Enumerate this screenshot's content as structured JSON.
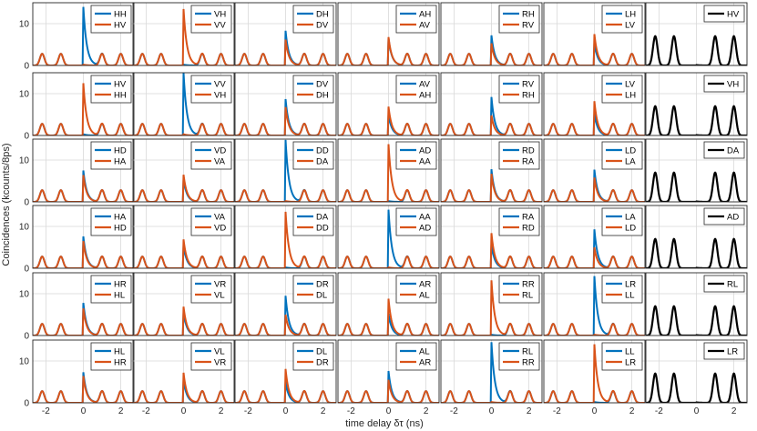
{
  "figure": {
    "xlabel": "time delay δτ (ns)",
    "ylabel": "Coincidences (kcounts/8ps)"
  },
  "colors": {
    "blue": "#0072BD",
    "orange": "#D95319",
    "black": "#000000",
    "grid": "#d9d9d9"
  },
  "chart_data": {
    "type": "line",
    "layout": "6 rows x 7 columns of small multiples",
    "xlim": [
      -2.7,
      2.7
    ],
    "ylim": [
      0,
      15
    ],
    "x_ticks": [
      -2,
      0,
      2
    ],
    "x_tick_labels": [
      "-2",
      "0",
      "2"
    ],
    "y_ticks": [
      0,
      10
    ],
    "y_tick_labels": [
      "0",
      "10"
    ],
    "grid": true,
    "legend_placement": "top-right",
    "side_peaks": {
      "centers": [
        -2.2,
        -1.2,
        1.0,
        2.0
      ],
      "height": 2.8,
      "height_last_column": 7.0
    },
    "rows": [
      {
        "panels": [
          {
            "legend": [
              "HH",
              "HV"
            ],
            "series": [
              {
                "name": "HH",
                "peak": 14.0
              },
              {
                "name": "HV",
                "peak": 0.2
              }
            ]
          },
          {
            "legend": [
              "VH",
              "VV"
            ],
            "series": [
              {
                "name": "VH",
                "peak": 0.2
              },
              {
                "name": "VV",
                "peak": 13.5
              }
            ]
          },
          {
            "legend": [
              "DH",
              "DV"
            ],
            "series": [
              {
                "name": "DH",
                "peak": 8.3
              },
              {
                "name": "DV",
                "peak": 6.2
              }
            ]
          },
          {
            "legend": [
              "AH",
              "AV"
            ],
            "series": [
              {
                "name": "AH",
                "peak": 6.5
              },
              {
                "name": "AV",
                "peak": 6.8
              }
            ]
          },
          {
            "legend": [
              "RH",
              "RV"
            ],
            "series": [
              {
                "name": "RH",
                "peak": 7.2
              },
              {
                "name": "RV",
                "peak": 5.3
              }
            ]
          },
          {
            "legend": [
              "LH",
              "LV"
            ],
            "series": [
              {
                "name": "LH",
                "peak": 5.4
              },
              {
                "name": "LV",
                "peak": 7.5
              }
            ]
          },
          {
            "legend": [
              "HV"
            ],
            "series": [
              {
                "name": "HV",
                "peak": 0.1
              }
            ]
          }
        ]
      },
      {
        "panels": [
          {
            "legend": [
              "HV",
              "HH"
            ],
            "series": [
              {
                "name": "HV",
                "peak": 0.3
              },
              {
                "name": "HH",
                "peak": 12.5
              }
            ]
          },
          {
            "legend": [
              "VV",
              "VH"
            ],
            "series": [
              {
                "name": "VV",
                "peak": 15.0
              },
              {
                "name": "VH",
                "peak": 0.3
              }
            ]
          },
          {
            "legend": [
              "DV",
              "DH"
            ],
            "series": [
              {
                "name": "DV",
                "peak": 8.7
              },
              {
                "name": "DH",
                "peak": 6.8
              }
            ]
          },
          {
            "legend": [
              "AV",
              "AH"
            ],
            "series": [
              {
                "name": "AV",
                "peak": 5.0
              },
              {
                "name": "AH",
                "peak": 6.9
              }
            ]
          },
          {
            "legend": [
              "RV",
              "RH"
            ],
            "series": [
              {
                "name": "RV",
                "peak": 9.2
              },
              {
                "name": "RH",
                "peak": 4.8
              }
            ]
          },
          {
            "legend": [
              "LV",
              "LH"
            ],
            "series": [
              {
                "name": "LV",
                "peak": 5.3
              },
              {
                "name": "LH",
                "peak": 8.2
              }
            ]
          },
          {
            "legend": [
              "VH"
            ],
            "series": [
              {
                "name": "VH",
                "peak": 0.1
              }
            ]
          }
        ]
      },
      {
        "panels": [
          {
            "legend": [
              "HD",
              "HA"
            ],
            "series": [
              {
                "name": "HD",
                "peak": 7.5
              },
              {
                "name": "HA",
                "peak": 6.4
              }
            ]
          },
          {
            "legend": [
              "VD",
              "VA"
            ],
            "series": [
              {
                "name": "VD",
                "peak": 5.4
              },
              {
                "name": "VA",
                "peak": 6.5
              }
            ]
          },
          {
            "legend": [
              "DD",
              "DA"
            ],
            "series": [
              {
                "name": "DD",
                "peak": 14.8
              },
              {
                "name": "DA",
                "peak": 0.2
              }
            ]
          },
          {
            "legend": [
              "AD",
              "AA"
            ],
            "series": [
              {
                "name": "AD",
                "peak": 0.2
              },
              {
                "name": "AA",
                "peak": 13.8
              }
            ]
          },
          {
            "legend": [
              "RD",
              "RA"
            ],
            "series": [
              {
                "name": "RD",
                "peak": 7.8
              },
              {
                "name": "RA",
                "peak": 6.7
              }
            ]
          },
          {
            "legend": [
              "LD",
              "LA"
            ],
            "series": [
              {
                "name": "LD",
                "peak": 7.7
              },
              {
                "name": "LA",
                "peak": 5.8
              }
            ]
          },
          {
            "legend": [
              "DA"
            ],
            "series": [
              {
                "name": "DA",
                "peak": 0.1
              }
            ]
          }
        ]
      },
      {
        "panels": [
          {
            "legend": [
              "HA",
              "HD"
            ],
            "series": [
              {
                "name": "HA",
                "peak": 7.6
              },
              {
                "name": "HD",
                "peak": 6.5
              }
            ]
          },
          {
            "legend": [
              "VA",
              "VD"
            ],
            "series": [
              {
                "name": "VA",
                "peak": 5.4
              },
              {
                "name": "VD",
                "peak": 6.9
              }
            ]
          },
          {
            "legend": [
              "DA",
              "DD"
            ],
            "series": [
              {
                "name": "DA",
                "peak": 0.2
              },
              {
                "name": "DD",
                "peak": 13.5
              }
            ]
          },
          {
            "legend": [
              "AA",
              "AD"
            ],
            "series": [
              {
                "name": "AA",
                "peak": 14.0
              },
              {
                "name": "AD",
                "peak": 0.2
              }
            ]
          },
          {
            "legend": [
              "RA",
              "RD"
            ],
            "series": [
              {
                "name": "RA",
                "peak": 5.7
              },
              {
                "name": "RD",
                "peak": 8.4
              }
            ]
          },
          {
            "legend": [
              "LA",
              "LD"
            ],
            "series": [
              {
                "name": "LA",
                "peak": 9.3
              },
              {
                "name": "LD",
                "peak": 5.0
              }
            ]
          },
          {
            "legend": [
              "AD"
            ],
            "series": [
              {
                "name": "AD",
                "peak": 0.1
              }
            ]
          }
        ]
      },
      {
        "panels": [
          {
            "legend": [
              "HR",
              "HL"
            ],
            "series": [
              {
                "name": "HR",
                "peak": 7.8
              },
              {
                "name": "HL",
                "peak": 6.5
              }
            ]
          },
          {
            "legend": [
              "VR",
              "VL"
            ],
            "series": [
              {
                "name": "VR",
                "peak": 5.5
              },
              {
                "name": "VL",
                "peak": 6.9
              }
            ]
          },
          {
            "legend": [
              "DR",
              "DL"
            ],
            "series": [
              {
                "name": "DR",
                "peak": 9.5
              },
              {
                "name": "DL",
                "peak": 5.0
              }
            ]
          },
          {
            "legend": [
              "AR",
              "AL"
            ],
            "series": [
              {
                "name": "AR",
                "peak": 5.2
              },
              {
                "name": "AL",
                "peak": 8.8
              }
            ]
          },
          {
            "legend": [
              "RR",
              "RL"
            ],
            "series": [
              {
                "name": "RR",
                "peak": 0.2
              },
              {
                "name": "RL",
                "peak": 13.2
              }
            ]
          },
          {
            "legend": [
              "LR",
              "LL"
            ],
            "series": [
              {
                "name": "LR",
                "peak": 14.2
              },
              {
                "name": "LL",
                "peak": 0.2
              }
            ]
          },
          {
            "legend": [
              "RL"
            ],
            "series": [
              {
                "name": "RL",
                "peak": 0.1
              }
            ]
          }
        ]
      },
      {
        "panels": [
          {
            "legend": [
              "HL",
              "HR"
            ],
            "series": [
              {
                "name": "HL",
                "peak": 7.3
              },
              {
                "name": "HR",
                "peak": 6.4
              }
            ]
          },
          {
            "legend": [
              "VL",
              "VR"
            ],
            "series": [
              {
                "name": "VL",
                "peak": 5.4
              },
              {
                "name": "VR",
                "peak": 7.2
              }
            ]
          },
          {
            "legend": [
              "DL",
              "DR"
            ],
            "series": [
              {
                "name": "DL",
                "peak": 5.0
              },
              {
                "name": "DR",
                "peak": 8.1
              }
            ]
          },
          {
            "legend": [
              "AL",
              "AR"
            ],
            "series": [
              {
                "name": "AL",
                "peak": 7.6
              },
              {
                "name": "AR",
                "peak": 5.5
              }
            ]
          },
          {
            "legend": [
              "RL",
              "RR"
            ],
            "series": [
              {
                "name": "RL",
                "peak": 14.5
              },
              {
                "name": "RR",
                "peak": 0.2
              }
            ]
          },
          {
            "legend": [
              "LL",
              "LR"
            ],
            "series": [
              {
                "name": "LL",
                "peak": 0.2
              },
              {
                "name": "LR",
                "peak": 14.0
              }
            ]
          },
          {
            "legend": [
              "LR"
            ],
            "series": [
              {
                "name": "LR",
                "peak": 0.1
              }
            ]
          }
        ]
      }
    ]
  }
}
